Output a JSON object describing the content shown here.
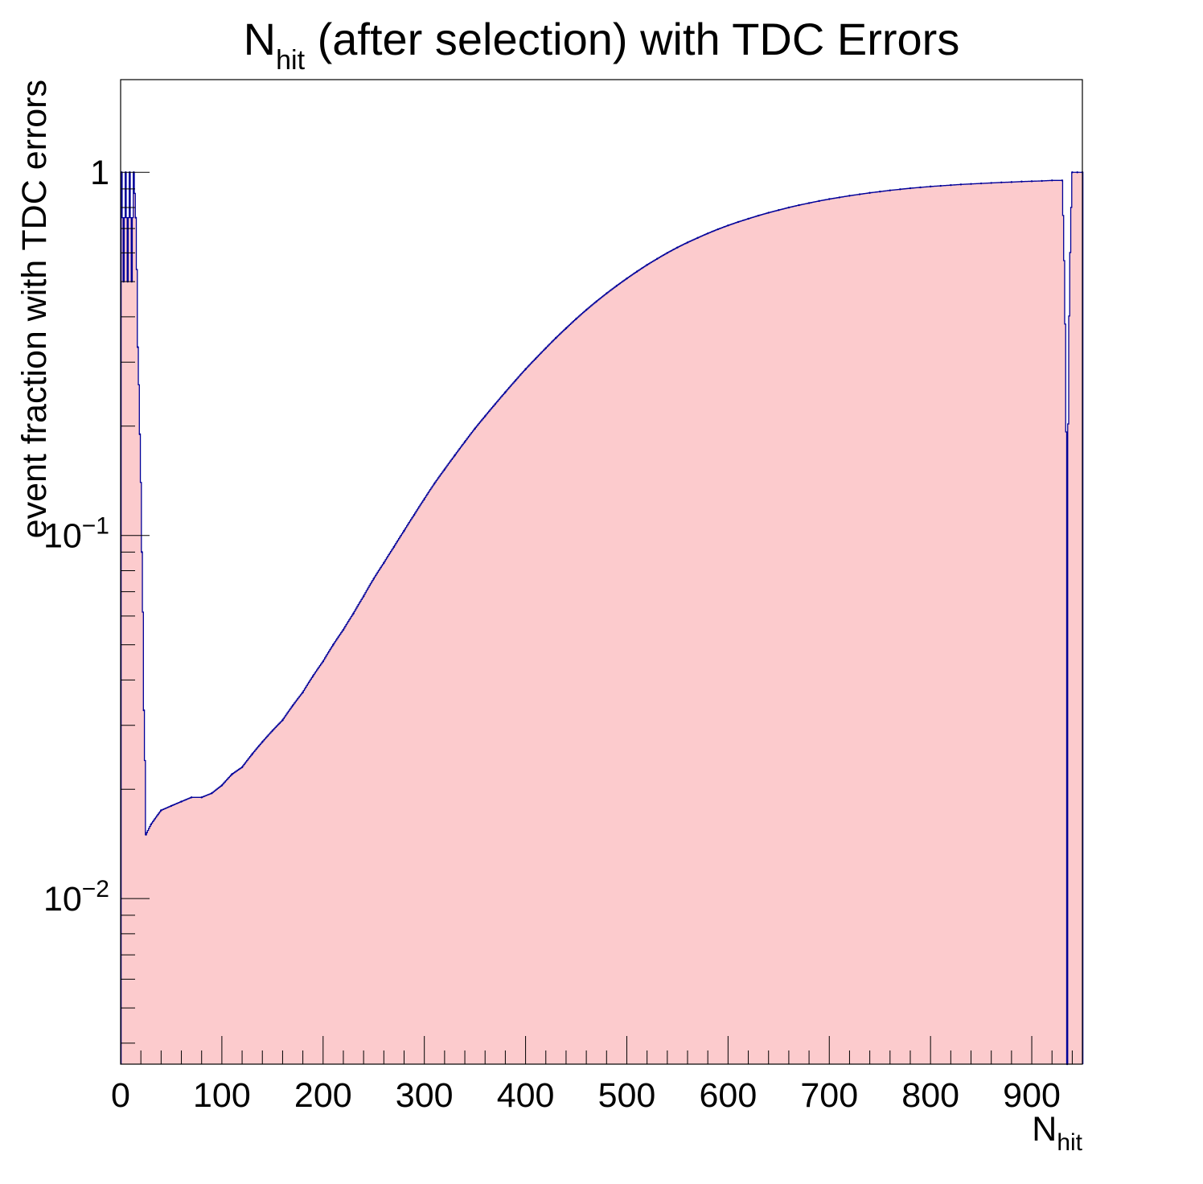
{
  "chart_data": {
    "type": "bar",
    "title": {
      "main": "N",
      "sub": "hit",
      "rest": " (after selection) with TDC Errors"
    },
    "xlabel": {
      "main": "N",
      "sub": "hit"
    },
    "ylabel": "event fraction with TDC errors",
    "x_range": [
      0,
      950
    ],
    "y_range": [
      0.0035,
      1.8
    ],
    "y_scale": "log",
    "x_ticks": [
      0,
      100,
      200,
      300,
      400,
      500,
      600,
      700,
      800,
      900
    ],
    "x_tick_labels": [
      "0",
      "100",
      "200",
      "300",
      "400",
      "500",
      "600",
      "700",
      "800",
      "900"
    ],
    "y_tick_labels": [
      {
        "value": 1,
        "base": "1",
        "exp": ""
      },
      {
        "value": 0.1,
        "base": "10",
        "exp": "−1"
      },
      {
        "value": 0.01,
        "base": "10",
        "exp": "−2"
      }
    ],
    "grid": false,
    "legend": "none",
    "bin_width": 1,
    "series": [
      {
        "fill_color": "#fccbcd",
        "line_color": "#000099",
        "points": [
          [
            1,
            1.0
          ],
          [
            3,
            0.5
          ],
          [
            5,
            1.0
          ],
          [
            7,
            0.5
          ],
          [
            9,
            1.0
          ],
          [
            11,
            0.5
          ],
          [
            13,
            1.0
          ],
          [
            15,
            0.75
          ],
          [
            17,
            0.33
          ],
          [
            19,
            0.19
          ],
          [
            21,
            0.09
          ],
          [
            23,
            0.033
          ],
          [
            25,
            0.015
          ],
          [
            30,
            0.016
          ],
          [
            40,
            0.0175
          ],
          [
            50,
            0.018
          ],
          [
            60,
            0.0185
          ],
          [
            70,
            0.019
          ],
          [
            80,
            0.019
          ],
          [
            90,
            0.0195
          ],
          [
            100,
            0.0205
          ],
          [
            110,
            0.022
          ],
          [
            120,
            0.023
          ],
          [
            130,
            0.025
          ],
          [
            140,
            0.027
          ],
          [
            150,
            0.029
          ],
          [
            160,
            0.031
          ],
          [
            170,
            0.034
          ],
          [
            180,
            0.037
          ],
          [
            190,
            0.041
          ],
          [
            200,
            0.045
          ],
          [
            210,
            0.05
          ],
          [
            220,
            0.055
          ],
          [
            230,
            0.061
          ],
          [
            240,
            0.068
          ],
          [
            250,
            0.076
          ],
          [
            260,
            0.084
          ],
          [
            270,
            0.093
          ],
          [
            280,
            0.103
          ],
          [
            290,
            0.114
          ],
          [
            300,
            0.126
          ],
          [
            310,
            0.139
          ],
          [
            320,
            0.152
          ],
          [
            330,
            0.166
          ],
          [
            340,
            0.181
          ],
          [
            350,
            0.197
          ],
          [
            360,
            0.213
          ],
          [
            370,
            0.23
          ],
          [
            380,
            0.248
          ],
          [
            390,
            0.267
          ],
          [
            400,
            0.287
          ],
          [
            410,
            0.307
          ],
          [
            420,
            0.328
          ],
          [
            430,
            0.35
          ],
          [
            440,
            0.372
          ],
          [
            450,
            0.395
          ],
          [
            460,
            0.418
          ],
          [
            470,
            0.441
          ],
          [
            480,
            0.464
          ],
          [
            490,
            0.487
          ],
          [
            500,
            0.51
          ],
          [
            510,
            0.533
          ],
          [
            520,
            0.556
          ],
          [
            530,
            0.578
          ],
          [
            540,
            0.6
          ],
          [
            550,
            0.621
          ],
          [
            560,
            0.641
          ],
          [
            570,
            0.66
          ],
          [
            580,
            0.679
          ],
          [
            590,
            0.697
          ],
          [
            600,
            0.714
          ],
          [
            610,
            0.73
          ],
          [
            620,
            0.745
          ],
          [
            630,
            0.76
          ],
          [
            640,
            0.774
          ],
          [
            650,
            0.787
          ],
          [
            660,
            0.8
          ],
          [
            670,
            0.812
          ],
          [
            680,
            0.823
          ],
          [
            690,
            0.834
          ],
          [
            700,
            0.844
          ],
          [
            710,
            0.853
          ],
          [
            720,
            0.862
          ],
          [
            730,
            0.87
          ],
          [
            740,
            0.878
          ],
          [
            750,
            0.885
          ],
          [
            760,
            0.892
          ],
          [
            770,
            0.898
          ],
          [
            780,
            0.904
          ],
          [
            790,
            0.909
          ],
          [
            800,
            0.914
          ],
          [
            810,
            0.918
          ],
          [
            820,
            0.922
          ],
          [
            830,
            0.926
          ],
          [
            840,
            0.929
          ],
          [
            850,
            0.932
          ],
          [
            860,
            0.935
          ],
          [
            870,
            0.938
          ],
          [
            880,
            0.94
          ],
          [
            890,
            0.943
          ],
          [
            900,
            0.945
          ],
          [
            910,
            0.947
          ],
          [
            920,
            0.95
          ],
          [
            930,
            0.95
          ],
          [
            935,
            0.0035
          ],
          [
            940,
            1.0
          ],
          [
            945,
            1.0
          ],
          [
            950,
            1.0
          ]
        ]
      }
    ]
  }
}
